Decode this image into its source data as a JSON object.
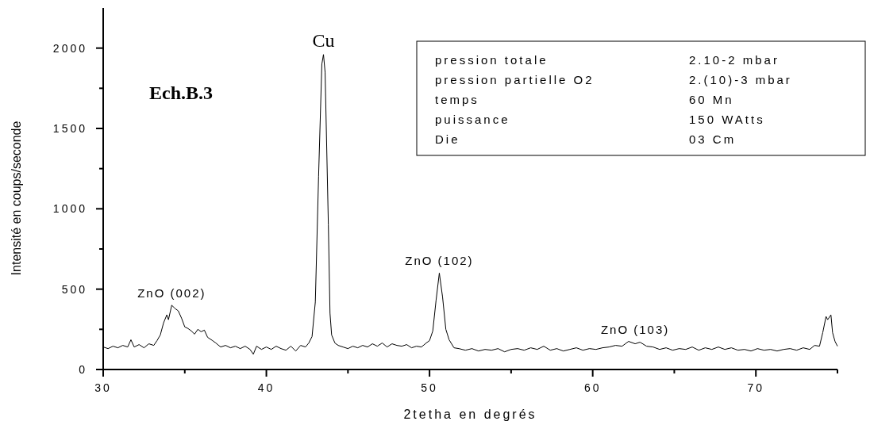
{
  "chart_data": {
    "type": "line",
    "title": "Ech.B.3",
    "xlabel": "2tetha en degrés",
    "ylabel": "Intensité en coups/seconde",
    "xlim": [
      30,
      75
    ],
    "xticks": [
      30,
      {
        "value": 35,
        "label": null
      },
      40,
      {
        "value": 45,
        "label": null
      },
      50,
      {
        "value": 55,
        "label": null
      },
      60,
      {
        "value": 65,
        "label": null
      },
      70,
      {
        "value": 75,
        "label": null
      }
    ],
    "ylim": [
      0,
      2250
    ],
    "yticks": [
      0,
      {
        "value": 250,
        "label": null
      },
      500,
      {
        "value": 750,
        "label": null
      },
      1000,
      {
        "value": 1250,
        "label": null
      },
      1500,
      {
        "value": 1750,
        "label": null
      },
      2000
    ],
    "grid": false,
    "marker": "none",
    "line_style": "solid",
    "series": [
      {
        "color": "#000000",
        "x": [
          30.0,
          30.3,
          30.6,
          30.9,
          31.2,
          31.5,
          31.7,
          31.9,
          32.2,
          32.5,
          32.8,
          33.1,
          33.3,
          33.5,
          33.7,
          33.9,
          34.0,
          34.2,
          34.4,
          34.6,
          34.8,
          35.0,
          35.2,
          35.4,
          35.6,
          35.8,
          36.0,
          36.2,
          36.4,
          36.7,
          36.9,
          37.2,
          37.5,
          37.8,
          38.1,
          38.4,
          38.7,
          39.0,
          39.2,
          39.4,
          39.7,
          40.0,
          40.3,
          40.6,
          40.9,
          41.2,
          41.5,
          41.8,
          42.1,
          42.4,
          42.6,
          42.8,
          43.0,
          43.2,
          43.4,
          43.5,
          43.6,
          43.8,
          43.9,
          44.0,
          44.2,
          44.4,
          44.7,
          45.0,
          45.3,
          45.6,
          45.9,
          46.2,
          46.5,
          46.8,
          47.1,
          47.4,
          47.7,
          48.0,
          48.3,
          48.6,
          48.9,
          49.2,
          49.5,
          49.8,
          50.0,
          50.2,
          50.4,
          50.6,
          50.8,
          51.0,
          51.2,
          51.5,
          51.8,
          52.2,
          52.6,
          53.0,
          53.4,
          53.8,
          54.2,
          54.6,
          55.0,
          55.4,
          55.8,
          56.2,
          56.6,
          57.0,
          57.4,
          57.8,
          58.2,
          58.6,
          59.0,
          59.4,
          59.8,
          60.2,
          60.6,
          61.0,
          61.4,
          61.8,
          62.2,
          62.6,
          62.9,
          63.3,
          63.7,
          64.1,
          64.5,
          64.9,
          65.3,
          65.7,
          66.1,
          66.5,
          66.9,
          67.3,
          67.7,
          68.1,
          68.5,
          68.9,
          69.3,
          69.7,
          70.1,
          70.5,
          70.9,
          71.3,
          71.7,
          72.1,
          72.5,
          72.9,
          73.3,
          73.6,
          73.9,
          74.1,
          74.3,
          74.4,
          74.6,
          74.7,
          74.85,
          75.0
        ],
        "values": [
          140,
          130,
          145,
          135,
          150,
          140,
          185,
          140,
          155,
          135,
          160,
          150,
          180,
          215,
          290,
          340,
          310,
          400,
          380,
          365,
          320,
          265,
          255,
          240,
          220,
          250,
          235,
          245,
          200,
          180,
          165,
          140,
          150,
          135,
          145,
          130,
          145,
          125,
          95,
          145,
          125,
          140,
          125,
          145,
          130,
          120,
          145,
          115,
          150,
          140,
          165,
          205,
          420,
          1200,
          1900,
          1960,
          1850,
          900,
          350,
          215,
          165,
          150,
          140,
          130,
          145,
          135,
          150,
          140,
          160,
          145,
          165,
          140,
          160,
          150,
          145,
          155,
          135,
          145,
          140,
          165,
          180,
          240,
          430,
          600,
          450,
          250,
          185,
          135,
          130,
          120,
          130,
          115,
          125,
          120,
          130,
          110,
          125,
          130,
          120,
          135,
          125,
          145,
          120,
          130,
          115,
          125,
          135,
          120,
          130,
          125,
          135,
          140,
          150,
          145,
          175,
          160,
          170,
          145,
          140,
          125,
          135,
          120,
          130,
          125,
          140,
          120,
          135,
          125,
          140,
          125,
          135,
          120,
          125,
          115,
          130,
          120,
          125,
          115,
          125,
          130,
          120,
          135,
          125,
          150,
          145,
          230,
          330,
          310,
          340,
          230,
          175,
          145
        ]
      }
    ],
    "annotations": [
      {
        "text": "Cu",
        "x": 43.5,
        "y": 1960
      },
      {
        "text": "ZnO (002)",
        "x": 34.2,
        "y": 400
      },
      {
        "text": "ZnO (102)",
        "x": 50.6,
        "y": 600
      },
      {
        "text": "ZnO (103)",
        "x": 62.6,
        "y": 175
      },
      "pression totale",
      "2.10-2 mbar",
      "pression partielle O2",
      "2.(10)-3 mbar",
      "temps",
      "60 Mn",
      "puissance",
      "150 WAtts",
      "Die",
      "03 Cm"
    ]
  }
}
